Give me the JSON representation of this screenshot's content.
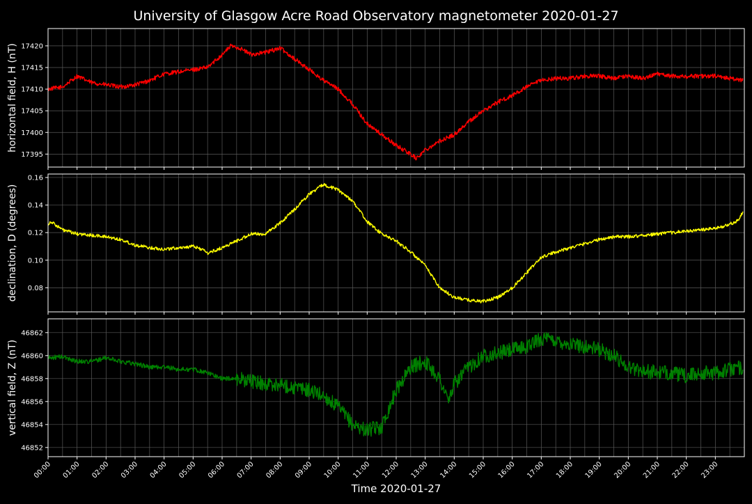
{
  "title": "University of Glasgow Acre Road Observatory magnetometer 2020-01-27",
  "xlabel": "Time 2020-01-27",
  "colors": {
    "background": "#000000",
    "text": "#ffffff",
    "grid": "#5a5a5a",
    "axes": "#ffffff"
  },
  "chart_data": [
    {
      "type": "line",
      "ylabel": "horizontal field, H (nT)",
      "color": "#ff0000",
      "xlim": [
        0,
        24
      ],
      "ylim": [
        17392,
        17424
      ],
      "yticks": [
        17395,
        17400,
        17405,
        17410,
        17415,
        17420
      ],
      "ytick_decimals": 0,
      "grid": true,
      "noise": 0.5,
      "x": [
        0,
        0.5,
        1,
        1.5,
        2,
        2.5,
        3,
        3.5,
        4,
        4.5,
        5,
        5.5,
        6,
        6.3,
        6.6,
        7,
        7.5,
        8,
        8.5,
        9,
        9.5,
        10,
        10.5,
        11,
        11.5,
        12,
        12.5,
        12.7,
        13,
        13.5,
        14,
        14.5,
        15,
        15.5,
        16,
        16.5,
        17,
        17.5,
        18,
        18.5,
        19,
        19.5,
        20,
        20.5,
        21,
        21.5,
        22,
        22.5,
        23,
        23.5,
        23.95
      ],
      "y": [
        17410,
        17410.5,
        17413,
        17411.5,
        17411,
        17410.5,
        17411,
        17412,
        17413.5,
        17414,
        17414.5,
        17415,
        17418,
        17420,
        17419.5,
        17418,
        17418.5,
        17419.5,
        17417,
        17414.5,
        17412,
        17410,
        17406.5,
        17402,
        17399.5,
        17397,
        17395,
        17394,
        17396,
        17398,
        17399.5,
        17402.5,
        17405,
        17407,
        17408.5,
        17410.5,
        17412,
        17412.5,
        17412.5,
        17413,
        17413,
        17412.5,
        17413,
        17412.5,
        17413.5,
        17413,
        17413,
        17413,
        17413,
        17412.5,
        17412
      ]
    },
    {
      "type": "line",
      "ylabel": "declination, D (degrees)",
      "color": "#ffff00",
      "xlim": [
        0,
        24
      ],
      "ylim": [
        0.0625,
        0.1625
      ],
      "yticks": [
        0.08,
        0.1,
        0.12,
        0.14,
        0.16
      ],
      "ytick_decimals": 2,
      "grid": true,
      "noise": 0.0012,
      "x": [
        0,
        0.1,
        0.5,
        1,
        1.5,
        2,
        2.5,
        3,
        3.5,
        4,
        4.5,
        5,
        5.3,
        5.5,
        6,
        6.5,
        7,
        7.5,
        8,
        8.5,
        9,
        9.5,
        10,
        10.5,
        11,
        11.5,
        12,
        12.5,
        13,
        13.5,
        14,
        14.5,
        15,
        15.5,
        16,
        16.5,
        17,
        17.5,
        18,
        18.5,
        19,
        19.5,
        20,
        20.5,
        21,
        21.5,
        22,
        22.5,
        23,
        23.5,
        23.8,
        23.95
      ],
      "y": [
        0.126,
        0.128,
        0.122,
        0.119,
        0.118,
        0.117,
        0.115,
        0.111,
        0.109,
        0.108,
        0.109,
        0.11,
        0.108,
        0.105,
        0.109,
        0.114,
        0.119,
        0.119,
        0.127,
        0.137,
        0.148,
        0.155,
        0.151,
        0.143,
        0.128,
        0.119,
        0.114,
        0.106,
        0.096,
        0.08,
        0.073,
        0.071,
        0.07,
        0.073,
        0.08,
        0.091,
        0.102,
        0.106,
        0.109,
        0.112,
        0.115,
        0.117,
        0.117,
        0.118,
        0.119,
        0.12,
        0.121,
        0.122,
        0.123,
        0.126,
        0.129,
        0.135
      ]
    },
    {
      "type": "line",
      "ylabel": "vertical field, Z (nT)",
      "color": "#008000",
      "xlim": [
        0,
        24
      ],
      "ylim": [
        46851.2,
        46863.2
      ],
      "yticks": [
        46852,
        46854,
        46856,
        46858,
        46860,
        46862
      ],
      "ytick_decimals": 0,
      "grid": true,
      "noise": 0.2,
      "x": [
        0,
        0.5,
        1,
        1.5,
        2,
        2.5,
        3,
        3.5,
        4,
        4.5,
        5,
        5.5,
        6,
        6.5,
        7,
        7.5,
        8,
        8.5,
        9,
        9.5,
        10,
        10.5,
        11,
        11.5,
        12,
        12.5,
        13,
        13.5,
        13.8,
        14,
        14.5,
        15,
        15.5,
        16,
        16.5,
        17,
        17.5,
        18,
        18.5,
        19,
        19.5,
        20,
        20.5,
        21,
        21.5,
        22,
        22.5,
        23,
        23.5,
        23.95
      ],
      "y": [
        46859.8,
        46859.9,
        46859.5,
        46859.5,
        46859.8,
        46859.5,
        46859.3,
        46859,
        46859,
        46858.8,
        46858.8,
        46858.5,
        46858,
        46858,
        46857.8,
        46857.5,
        46857.5,
        46857.2,
        46857,
        46856.5,
        46855.5,
        46854,
        46853.5,
        46853.8,
        46857,
        46859,
        46859.5,
        46858,
        46856,
        46857.5,
        46859,
        46860,
        46860.2,
        46860.5,
        46860.8,
        46861.5,
        46861.3,
        46861,
        46860.8,
        46860.5,
        46860,
        46859,
        46858.7,
        46858.5,
        46858.5,
        46858.2,
        46858.5,
        46858.5,
        46858.8,
        46859
      ]
    }
  ],
  "x_axis": {
    "ticks": [
      0,
      1,
      2,
      3,
      4,
      5,
      6,
      7,
      8,
      9,
      10,
      11,
      12,
      13,
      14,
      15,
      16,
      17,
      18,
      19,
      20,
      21,
      22,
      23
    ],
    "tick_labels": [
      "00:00",
      "01:00",
      "02:00",
      "03:00",
      "04:00",
      "05:00",
      "06:00",
      "07:00",
      "08:00",
      "09:00",
      "10:00",
      "11:00",
      "12:00",
      "13:00",
      "14:00",
      "15:00",
      "16:00",
      "17:00",
      "18:00",
      "19:00",
      "20:00",
      "21:00",
      "22:00",
      "23:00"
    ],
    "minor_step": 0.5
  }
}
